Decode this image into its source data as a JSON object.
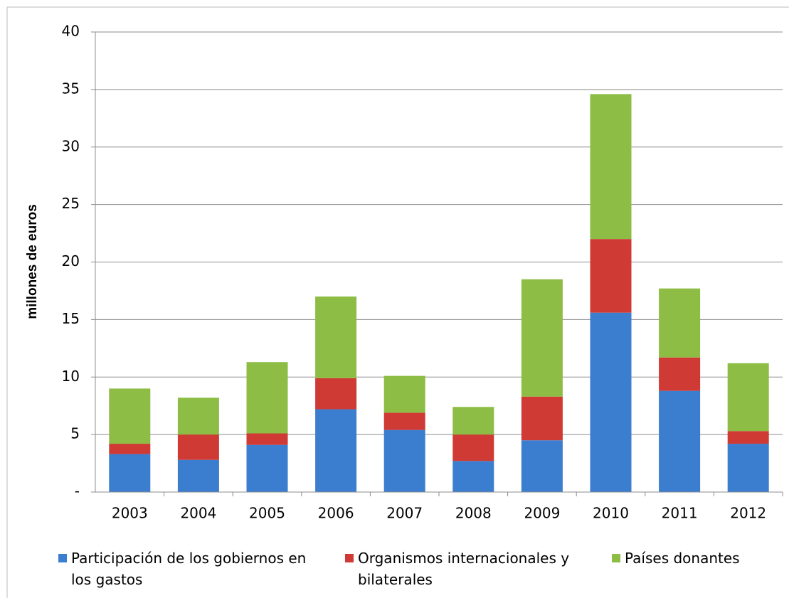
{
  "chart_data": {
    "type": "stacked_bar",
    "y_label": "millones de euros",
    "categories": [
      "2003",
      "2004",
      "2005",
      "2006",
      "2007",
      "2008",
      "2009",
      "2010",
      "2011",
      "2012"
    ],
    "series": [
      {
        "name": "Participación de los gobiernos en los gastos",
        "color": "#3b7dce",
        "values": [
          3.3,
          2.8,
          4.1,
          7.2,
          5.4,
          2.7,
          4.5,
          15.6,
          8.8,
          4.2
        ]
      },
      {
        "name": "Organismos internacionales y bilaterales",
        "color": "#cf3a35",
        "values": [
          0.9,
          2.2,
          1.0,
          2.7,
          1.5,
          2.3,
          3.8,
          6.4,
          2.9,
          1.1
        ]
      },
      {
        "name": "Países donantes",
        "color": "#8dbd44",
        "values": [
          4.8,
          3.2,
          6.2,
          7.1,
          3.2,
          2.4,
          10.2,
          12.6,
          6.0,
          5.9
        ]
      }
    ],
    "ylim": [
      0,
      40
    ],
    "yticks": [
      {
        "value": 0,
        "label": "-"
      },
      5,
      10,
      15,
      20,
      25,
      30,
      35,
      40
    ],
    "grid": true
  }
}
